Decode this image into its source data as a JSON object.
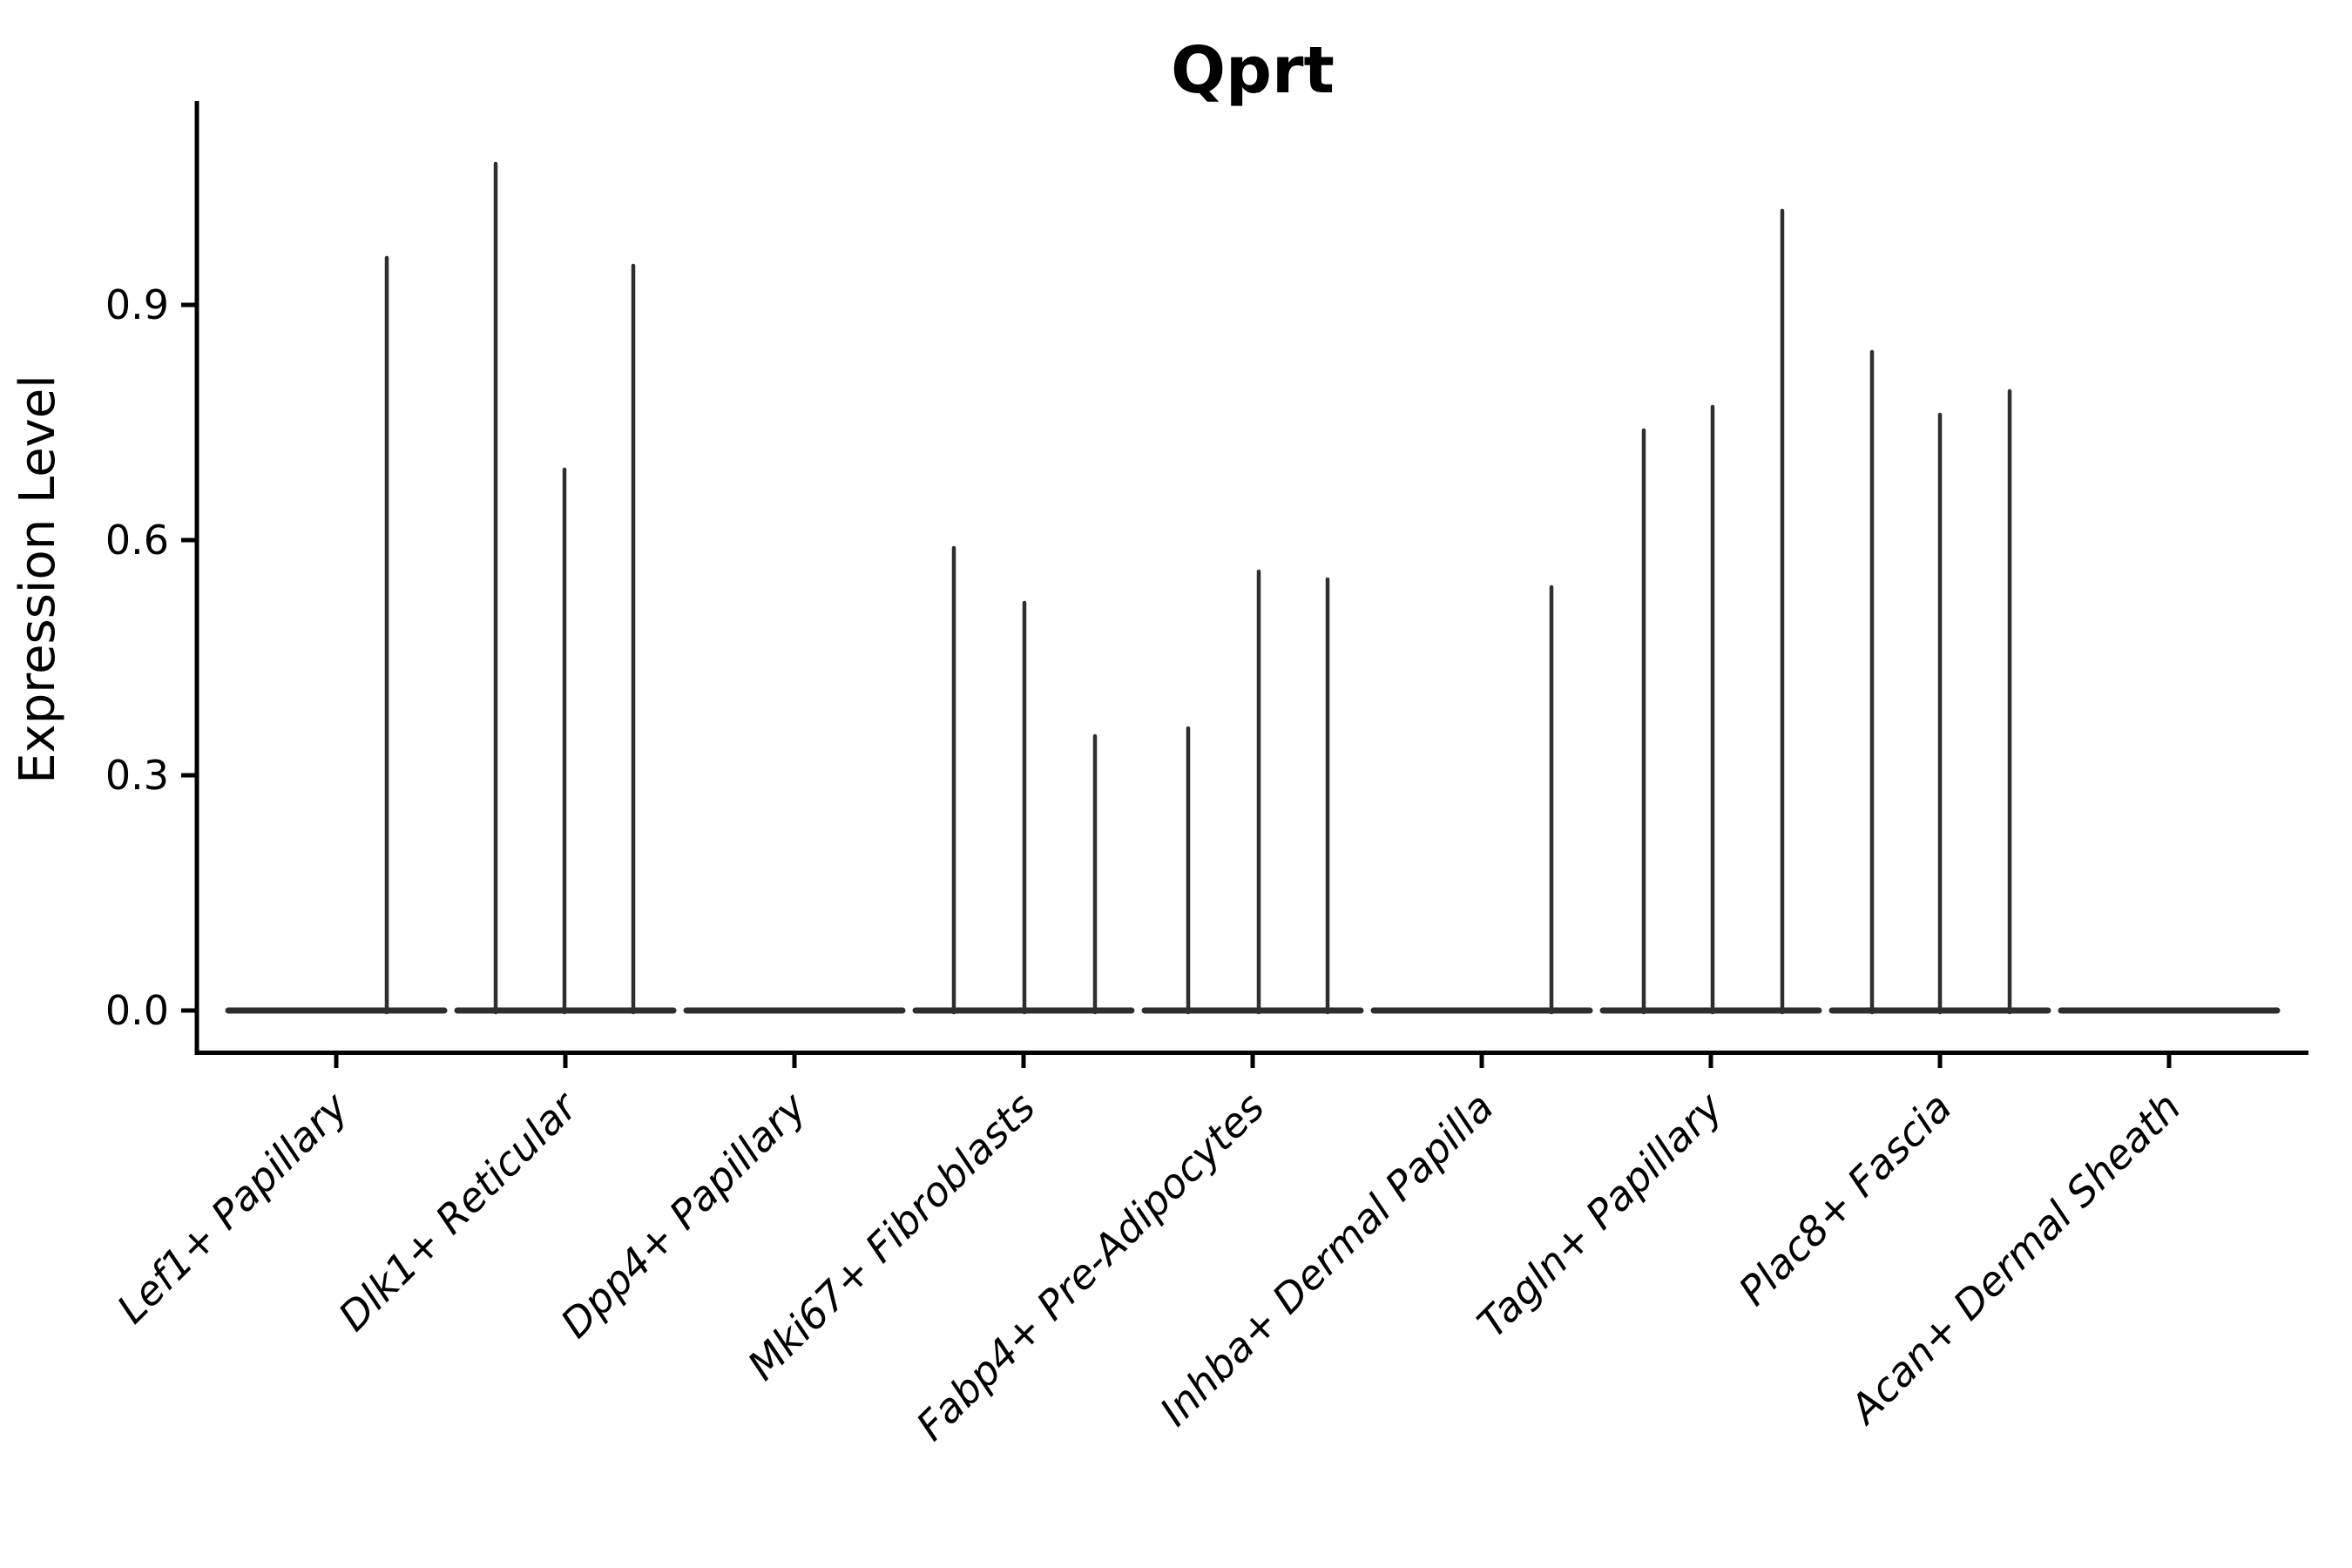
{
  "chart_data": {
    "type": "violin",
    "title": "Qprt",
    "ylabel": "Expression Level",
    "xlabel": "",
    "legend": "none",
    "grid": false,
    "background": "#ffffff",
    "colors": {
      "violin_stroke": "#2e2e2e",
      "axis": "#000000",
      "text": "#000000"
    },
    "ylim": [
      -0.05,
      1.16
    ],
    "ytick_labels": [
      "0.0",
      "0.3",
      "0.6",
      "0.9"
    ],
    "ytick_values": [
      0.0,
      0.3,
      0.6,
      0.9
    ],
    "categories": [
      "Lef1+ Papillary",
      "Dlk1+ Reticular",
      "Dpp4+ Papillary",
      "Mki67+ Fibroblasts",
      "Fabp4+ Pre-Adipocytes",
      "Inhba+ Dermal Papilla",
      "Tagln+ Papillary",
      "Plac8+ Fascia",
      "Acan+ Dermal Sheath"
    ],
    "violins": [
      {
        "category": "Lef1+ Papillary",
        "baseline_value": 0.0,
        "spikes": [
          {
            "offset": 58,
            "value": 0.96
          }
        ]
      },
      {
        "category": "Dlk1+ Reticular",
        "baseline_value": 0.0,
        "spikes": [
          {
            "offset": -80,
            "value": 1.08
          },
          {
            "offset": -1,
            "value": 0.69
          },
          {
            "offset": 78,
            "value": 0.95
          }
        ]
      },
      {
        "category": "Dpp4+ Papillary",
        "baseline_value": 0.0,
        "spikes": []
      },
      {
        "category": "Mki67+ Fibroblasts",
        "baseline_value": 0.0,
        "spikes": [
          {
            "offset": -80,
            "value": 0.59
          },
          {
            "offset": 1,
            "value": 0.52
          },
          {
            "offset": 82,
            "value": 0.35
          }
        ]
      },
      {
        "category": "Fabp4+ Pre-Adipocytes",
        "baseline_value": 0.0,
        "spikes": [
          {
            "offset": -74,
            "value": 0.36
          },
          {
            "offset": 7,
            "value": 0.56
          },
          {
            "offset": 86,
            "value": 0.55
          }
        ]
      },
      {
        "category": "Inhba+ Dermal Papilla",
        "baseline_value": 0.0,
        "spikes": [
          {
            "offset": 80,
            "value": 0.54
          }
        ]
      },
      {
        "category": "Tagln+ Papillary",
        "baseline_value": 0.0,
        "spikes": [
          {
            "offset": -77,
            "value": 0.74
          },
          {
            "offset": 2,
            "value": 0.77
          },
          {
            "offset": 82,
            "value": 1.02
          }
        ]
      },
      {
        "category": "Plac8+ Fascia",
        "baseline_value": 0.0,
        "spikes": [
          {
            "offset": -78,
            "value": 0.84
          },
          {
            "offset": 0,
            "value": 0.76
          },
          {
            "offset": 80,
            "value": 0.79
          }
        ]
      },
      {
        "category": "Acan+ Dermal Sheath",
        "baseline_value": 0.0,
        "spikes": []
      }
    ]
  }
}
